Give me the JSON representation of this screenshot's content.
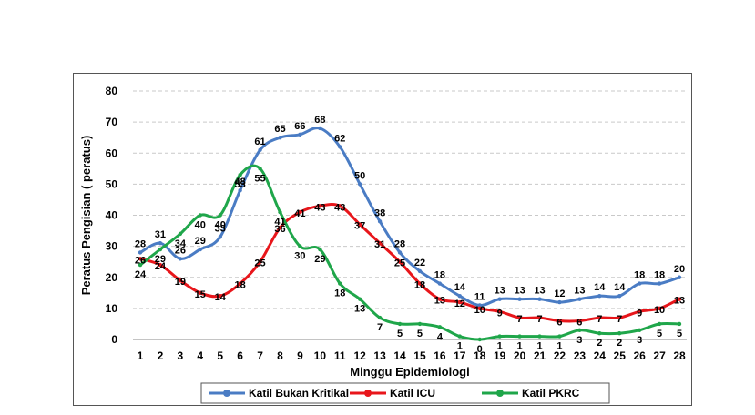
{
  "chart_data": {
    "type": "line",
    "title": "",
    "xlabel": "Minggu Epidemiologi",
    "ylabel": "Peratus Pengisian ( peratus)",
    "ylim": [
      0,
      80
    ],
    "yticks": [
      0,
      10,
      20,
      30,
      40,
      50,
      60,
      70,
      80
    ],
    "grid": true,
    "legend_position": "bottom",
    "categories": [
      "1",
      "2",
      "3",
      "4",
      "5",
      "6",
      "7",
      "8",
      "9",
      "10",
      "11",
      "12",
      "13",
      "14",
      "15",
      "16",
      "17",
      "18",
      "19",
      "20",
      "21",
      "22",
      "23",
      "24",
      "25",
      "26",
      "27",
      "28"
    ],
    "series": [
      {
        "name": "Katil Bukan Kritikal",
        "color": "#4a7cc4",
        "values": [
          28,
          31,
          26,
          29,
          33,
          48,
          61,
          65,
          66,
          68,
          62,
          50,
          38,
          28,
          22,
          18,
          14,
          11,
          13,
          13,
          13,
          12,
          13,
          14,
          14,
          18,
          18,
          20
        ]
      },
      {
        "name": "Katil ICU",
        "color": "#e8161b",
        "values": [
          26,
          24,
          19,
          15,
          14,
          18,
          25,
          36,
          41,
          43,
          43,
          37,
          31,
          25,
          18,
          13,
          12,
          10,
          9,
          7,
          7,
          6,
          6,
          7,
          7,
          9,
          10,
          13
        ]
      },
      {
        "name": "Katil PKRC",
        "color": "#1fa64a",
        "values": [
          24,
          29,
          34,
          40,
          40,
          53,
          55,
          41,
          30,
          29,
          18,
          13,
          7,
          5,
          5,
          4,
          1,
          0,
          1,
          1,
          1,
          1,
          3,
          2,
          2,
          3,
          5,
          5
        ]
      }
    ]
  }
}
